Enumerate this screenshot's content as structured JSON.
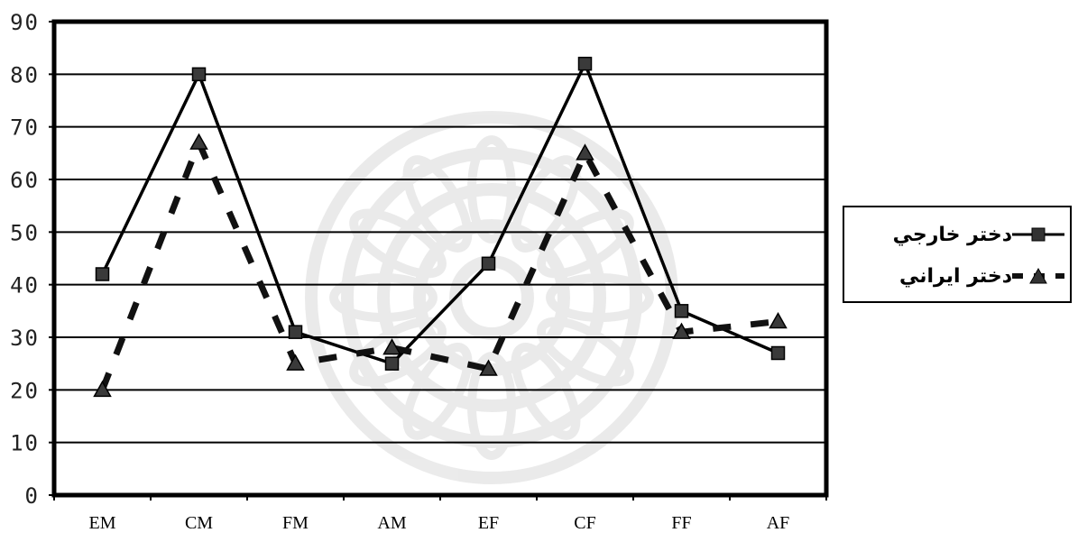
{
  "chart_data": {
    "type": "line",
    "categories": [
      "EM",
      "CM",
      "FM",
      "AM",
      "EF",
      "CF",
      "FF",
      "AF"
    ],
    "ylim": [
      0,
      90
    ],
    "yticks": [
      0,
      10,
      20,
      30,
      40,
      50,
      60,
      70,
      80,
      90
    ],
    "grid": true,
    "legend_position": "right",
    "series": [
      {
        "name": "دختر خارجي",
        "style": "solid",
        "marker": "square",
        "color": "#000000",
        "values": [
          42,
          80,
          31,
          25,
          44,
          82,
          35,
          27
        ]
      },
      {
        "name": "دختر ايراني",
        "style": "dashed",
        "marker": "triangle",
        "color": "#000000",
        "values": [
          20,
          67,
          25,
          28,
          24,
          65,
          31,
          33
        ]
      }
    ]
  }
}
